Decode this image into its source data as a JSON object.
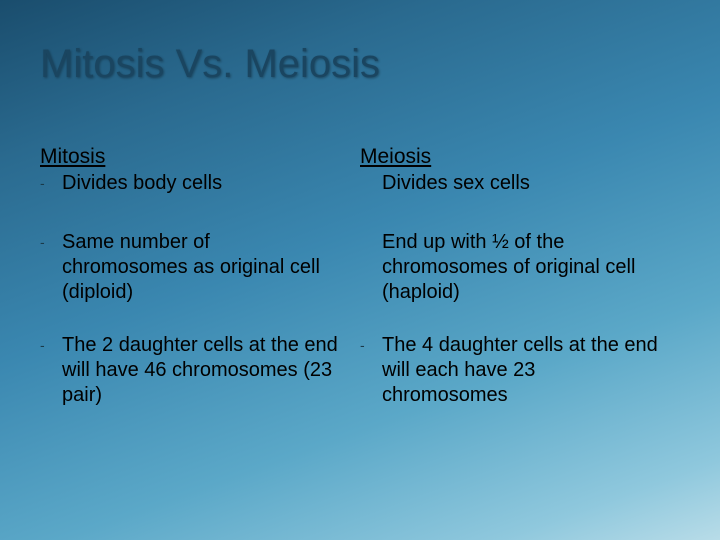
{
  "background": {
    "gradient_stops": [
      "#1a4d6d",
      "#2a6a8f",
      "#3a87b0",
      "#5ba8c8",
      "#8fc8dd",
      "#b8dce8"
    ],
    "angle_deg": 160
  },
  "title": {
    "text": "Mitosis Vs. Meiosis",
    "color": "#1a4560",
    "fontsize": 40
  },
  "body_text_color": "#000000",
  "body_fontsize": 20,
  "header_fontsize": 21,
  "columns": [
    {
      "header": "Mitosis",
      "points": [
        "Divides body cells",
        "Same number of chromosomes as original cell (diploid)",
        "The 2 daughter cells at the end will have 46 chromosomes (23 pair)"
      ]
    },
    {
      "header": "Meiosis",
      "points": [
        "Divides sex cells",
        "End up with ½ of the chromosomes of original cell (haploid)",
        "The 4 daughter cells at the end will each have 23 chromosomes"
      ]
    }
  ],
  "bullet_char": "-"
}
